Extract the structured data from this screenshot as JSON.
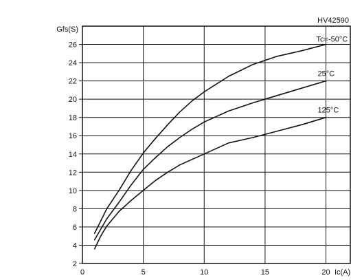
{
  "chart_data": {
    "type": "line",
    "figure_code": "HV42590",
    "xlabel": "Ic(A)",
    "ylabel": "Gfs(S)",
    "xlim": [
      0,
      22
    ],
    "ylim": [
      2,
      28
    ],
    "x_ticks": [
      0,
      5,
      10,
      15,
      20
    ],
    "y_ticks": [
      2,
      4,
      6,
      8,
      10,
      12,
      14,
      16,
      18,
      20,
      22,
      24,
      26
    ],
    "grid": true,
    "series": [
      {
        "name": "Tc=-50°C",
        "x": [
          1,
          2,
          3,
          4,
          5,
          6,
          7,
          8,
          9,
          10,
          12,
          14,
          16,
          18,
          20
        ],
        "y": [
          5.3,
          8.0,
          10.0,
          12.2,
          14.1,
          15.7,
          17.2,
          18.6,
          19.8,
          20.8,
          22.5,
          23.8,
          24.7,
          25.3,
          26.0
        ]
      },
      {
        "name": "25°C",
        "x": [
          1,
          2,
          3,
          4,
          5,
          6,
          7,
          8,
          9,
          10,
          12,
          14,
          16,
          18,
          20
        ],
        "y": [
          4.6,
          6.9,
          8.7,
          10.6,
          12.3,
          13.6,
          14.8,
          15.8,
          16.7,
          17.5,
          18.7,
          19.6,
          20.4,
          21.2,
          22.0
        ]
      },
      {
        "name": "125°C",
        "x": [
          1,
          1.5,
          2,
          3,
          4,
          5,
          6,
          7,
          8,
          10,
          12,
          14,
          16,
          18,
          20
        ],
        "y": [
          3.6,
          5.0,
          6.1,
          7.7,
          8.9,
          10.0,
          11.1,
          12.0,
          12.8,
          14.0,
          15.2,
          15.8,
          16.5,
          17.2,
          18.0
        ]
      }
    ]
  }
}
